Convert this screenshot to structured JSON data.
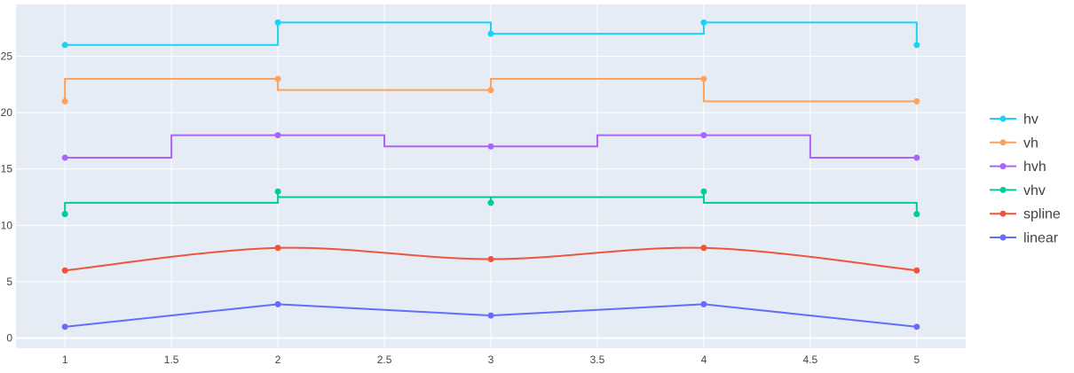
{
  "chart_data": {
    "type": "line",
    "title": "",
    "xlabel": "",
    "ylabel": "",
    "x": [
      1,
      2,
      3,
      4,
      5
    ],
    "xlim": [
      0.77,
      5.23
    ],
    "ylim": [
      -0.9,
      29.6
    ],
    "x_ticks": [
      1,
      1.5,
      2,
      2.5,
      3,
      3.5,
      4,
      4.5,
      5
    ],
    "x_tick_labels": [
      "1",
      "1.5",
      "2",
      "2.5",
      "3",
      "3.5",
      "4",
      "4.5",
      "5"
    ],
    "y_ticks": [
      0,
      5,
      10,
      15,
      20,
      25
    ],
    "y_tick_labels": [
      "0",
      "5",
      "10",
      "15",
      "20",
      "25"
    ],
    "grid": true,
    "legend_position": "right",
    "series": [
      {
        "name": "linear",
        "color": "#636efa",
        "shape": "linear",
        "values": [
          1,
          3,
          2,
          3,
          1
        ]
      },
      {
        "name": "spline",
        "color": "#ef553b",
        "shape": "spline",
        "values": [
          6,
          8,
          7,
          8,
          6
        ]
      },
      {
        "name": "vhv",
        "color": "#00cc96",
        "shape": "vhv",
        "values": [
          11,
          13,
          12,
          13,
          11
        ]
      },
      {
        "name": "hvh",
        "color": "#ab63fa",
        "shape": "hvh",
        "values": [
          16,
          18,
          17,
          18,
          16
        ]
      },
      {
        "name": "vh",
        "color": "#ffa15a",
        "shape": "vh",
        "values": [
          21,
          23,
          22,
          23,
          21
        ]
      },
      {
        "name": "hv",
        "color": "#19d3f3",
        "shape": "hv",
        "values": [
          26,
          28,
          27,
          28,
          26
        ]
      }
    ],
    "legend_order": [
      "hv",
      "vh",
      "hvh",
      "vhv",
      "spline",
      "linear"
    ]
  },
  "style": {
    "plot_bg": "#e5ecf6",
    "grid_color": "#ffffff",
    "text_color": "#444444"
  }
}
